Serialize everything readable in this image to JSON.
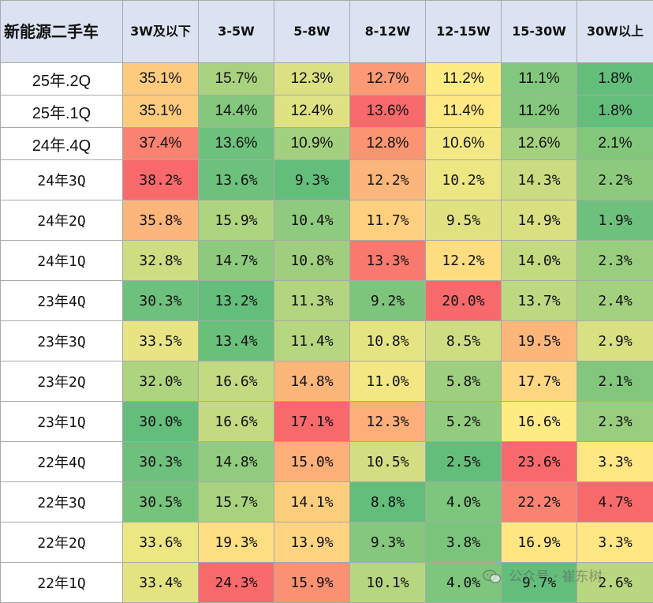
{
  "chart_data": {
    "type": "heatmap",
    "corner_label": "新能源二手车",
    "columns": [
      "3W及以下",
      "3-5W",
      "5-8W",
      "8-12W",
      "12-15W",
      "15-30W",
      "30W以上"
    ],
    "rows": [
      {
        "label": "25年.2Q",
        "values": [
          "35.1%",
          "15.7%",
          "12.3%",
          "12.7%",
          "11.2%",
          "11.1%",
          "1.8%"
        ]
      },
      {
        "label": "25年.1Q",
        "values": [
          "35.1%",
          "14.4%",
          "12.4%",
          "13.6%",
          "11.4%",
          "11.2%",
          "1.8%"
        ]
      },
      {
        "label": "24年.4Q",
        "values": [
          "37.4%",
          "13.6%",
          "10.9%",
          "12.8%",
          "10.6%",
          "12.6%",
          "2.1%"
        ]
      },
      {
        "label": "24年3Q",
        "values": [
          "38.2%",
          "13.6%",
          "9.3%",
          "12.2%",
          "10.2%",
          "14.3%",
          "2.2%"
        ]
      },
      {
        "label": "24年2Q",
        "values": [
          "35.8%",
          "15.9%",
          "10.4%",
          "11.7%",
          "9.5%",
          "14.9%",
          "1.9%"
        ]
      },
      {
        "label": "24年1Q",
        "values": [
          "32.8%",
          "14.7%",
          "10.8%",
          "13.3%",
          "12.2%",
          "14.0%",
          "2.3%"
        ]
      },
      {
        "label": "23年4Q",
        "values": [
          "30.3%",
          "13.2%",
          "11.3%",
          "9.2%",
          "20.0%",
          "13.7%",
          "2.4%"
        ]
      },
      {
        "label": "23年3Q",
        "values": [
          "33.5%",
          "13.4%",
          "11.4%",
          "10.8%",
          "8.5%",
          "19.5%",
          "2.9%"
        ]
      },
      {
        "label": "23年2Q",
        "values": [
          "32.0%",
          "16.6%",
          "14.8%",
          "11.0%",
          "5.8%",
          "17.7%",
          "2.1%"
        ]
      },
      {
        "label": "23年1Q",
        "values": [
          "30.0%",
          "16.6%",
          "17.1%",
          "12.3%",
          "5.2%",
          "16.6%",
          "2.3%"
        ]
      },
      {
        "label": "22年4Q",
        "values": [
          "30.3%",
          "14.8%",
          "15.0%",
          "10.5%",
          "2.5%",
          "23.6%",
          "3.3%"
        ]
      },
      {
        "label": "22年3Q",
        "values": [
          "30.5%",
          "15.7%",
          "14.1%",
          "8.8%",
          "4.0%",
          "22.2%",
          "4.7%"
        ]
      },
      {
        "label": "22年2Q",
        "values": [
          "33.6%",
          "19.3%",
          "13.9%",
          "9.3%",
          "3.8%",
          "16.9%",
          "3.3%"
        ]
      },
      {
        "label": "22年1Q",
        "values": [
          "33.4%",
          "24.3%",
          "15.9%",
          "10.1%",
          "4.0%",
          "9.7%",
          "2.6%"
        ]
      }
    ],
    "color_scale": {
      "low": "#63be7b",
      "mid": "#ffeb84",
      "high": "#f8696b"
    }
  },
  "watermark": "公众号 · 崔东树",
  "watermark_icon": "wechat-icon"
}
